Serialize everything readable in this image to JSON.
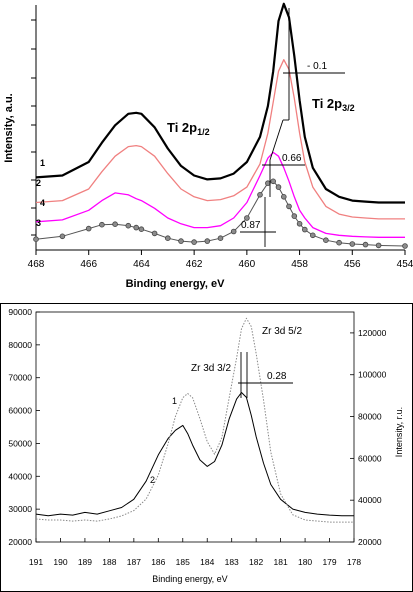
{
  "chart_data": [
    {
      "type": "line",
      "xlabel": "Binding energy, eV",
      "ylabel": "Intensity, a.u.",
      "xlim": [
        468,
        454
      ],
      "x_ticks": [
        "468",
        "466",
        "464",
        "462",
        "460",
        "458",
        "456",
        "454"
      ],
      "x": [
        468,
        467,
        466,
        465.5,
        465,
        464.5,
        464.2,
        464,
        463.5,
        463,
        462.5,
        462,
        461.5,
        461,
        460.5,
        460,
        459.5,
        459.2,
        459,
        458.8,
        458.6,
        458.4,
        458.2,
        458,
        457.8,
        457.5,
        457,
        456.5,
        456,
        455.5,
        455,
        454
      ],
      "series": [
        {
          "name": "1",
          "color": "#000000",
          "marker": "none",
          "values": [
            3.5,
            3.6,
            4.3,
            5.3,
            6.2,
            6.8,
            6.85,
            6.8,
            6.1,
            5.0,
            4.1,
            3.6,
            3.4,
            3.45,
            3.7,
            4.3,
            5.6,
            7.2,
            9.0,
            11.6,
            12.5,
            11.8,
            9.8,
            7.5,
            5.6,
            4.0,
            2.9,
            2.5,
            2.3,
            2.25,
            2.2,
            2.2
          ]
        },
        {
          "name": "2",
          "color": "#f08080",
          "marker": "none",
          "values": [
            2.2,
            2.3,
            2.9,
            3.8,
            4.6,
            5.1,
            5.15,
            5.1,
            4.6,
            3.7,
            2.9,
            2.5,
            2.3,
            2.35,
            2.55,
            3.0,
            4.2,
            5.8,
            7.4,
            9.0,
            9.6,
            9.1,
            7.6,
            5.8,
            4.3,
            3.0,
            2.0,
            1.6,
            1.45,
            1.4,
            1.35,
            1.35
          ]
        },
        {
          "name": "4",
          "color": "#ff00ff",
          "marker": "none",
          "values": [
            1.2,
            1.3,
            1.8,
            2.3,
            2.7,
            2.6,
            2.4,
            2.3,
            1.9,
            1.4,
            1.1,
            0.9,
            0.9,
            1.0,
            1.4,
            2.2,
            3.6,
            4.5,
            4.8,
            4.6,
            4.0,
            3.3,
            2.5,
            1.8,
            1.4,
            0.9,
            0.6,
            0.5,
            0.45,
            0.42,
            0.4,
            0.4
          ]
        },
        {
          "name": "3",
          "color": "#555555",
          "marker": "circle",
          "values": [
            0.3,
            0.45,
            0.85,
            1.05,
            1.08,
            1.0,
            0.9,
            0.82,
            0.6,
            0.35,
            0.2,
            0.15,
            0.2,
            0.35,
            0.7,
            1.4,
            2.6,
            3.2,
            3.3,
            3.0,
            2.5,
            2.0,
            1.5,
            1.1,
            0.8,
            0.5,
            0.25,
            0.12,
            0.05,
            0.02,
            -0.02,
            -0.05
          ]
        }
      ],
      "annotations": {
        "peak_left_main": "Ti 2p",
        "peak_left_sub": "1/2",
        "peak_right_main": "Ti 2p",
        "peak_right_sub": "3/2",
        "shift_1": "- 0.1",
        "shift_2": "0.66",
        "shift_3": "0.87"
      }
    },
    {
      "type": "line",
      "xlabel": "Binding energy, eV",
      "ylabel": "Intensity, r.u.",
      "xlim": [
        191,
        178
      ],
      "x_ticks": [
        "191",
        "190",
        "189",
        "188",
        "187",
        "186",
        "185",
        "184",
        "183",
        "182",
        "181",
        "180",
        "179",
        "178"
      ],
      "ylim_left": [
        20000,
        90000
      ],
      "y_ticks_left": [
        "20000",
        "30000",
        "40000",
        "50000",
        "60000",
        "70000",
        "80000",
        "90000"
      ],
      "ylim_right": [
        20000,
        130000
      ],
      "y_ticks_right": [
        "20000",
        "40000",
        "60000",
        "80000",
        "100000",
        "120000"
      ],
      "x": [
        191,
        190.5,
        190,
        189.5,
        189,
        188.5,
        188,
        187.5,
        187,
        186.5,
        186,
        185.6,
        185.3,
        185,
        184.8,
        184.6,
        184.3,
        184,
        183.7,
        183.4,
        183.1,
        182.8,
        182.6,
        182.4,
        182.2,
        182,
        181.7,
        181.4,
        181,
        180.5,
        180,
        179.5,
        179,
        178.5,
        178
      ],
      "series": [
        {
          "name": "2",
          "color": "#000000",
          "dash": "solid",
          "axis": "left",
          "values": [
            28500,
            28000,
            28500,
            28200,
            29000,
            28500,
            29500,
            30500,
            33000,
            38500,
            46500,
            51500,
            54000,
            55500,
            53000,
            49500,
            45000,
            43000,
            44500,
            49500,
            57500,
            63500,
            65500,
            64000,
            58500,
            52000,
            44000,
            37500,
            33000,
            30000,
            29000,
            28500,
            28200,
            28000,
            28000
          ]
        },
        {
          "name": "1",
          "color": "#888888",
          "dash": "dotted",
          "axis": "right",
          "values": [
            31000,
            30500,
            30500,
            30000,
            30500,
            30000,
            31000,
            32500,
            35000,
            40500,
            52000,
            67000,
            80000,
            89000,
            91000,
            89000,
            79000,
            68000,
            62000,
            70000,
            89000,
            108000,
            122000,
            127000,
            123000,
            110000,
            88000,
            63000,
            43000,
            33000,
            30500,
            30000,
            29500,
            29500,
            29500
          ]
        }
      ],
      "annotations": {
        "peak_left": "Zr 3d 3/2",
        "peak_right": "Zr 3d 5/2",
        "shift": "0.28"
      }
    }
  ]
}
